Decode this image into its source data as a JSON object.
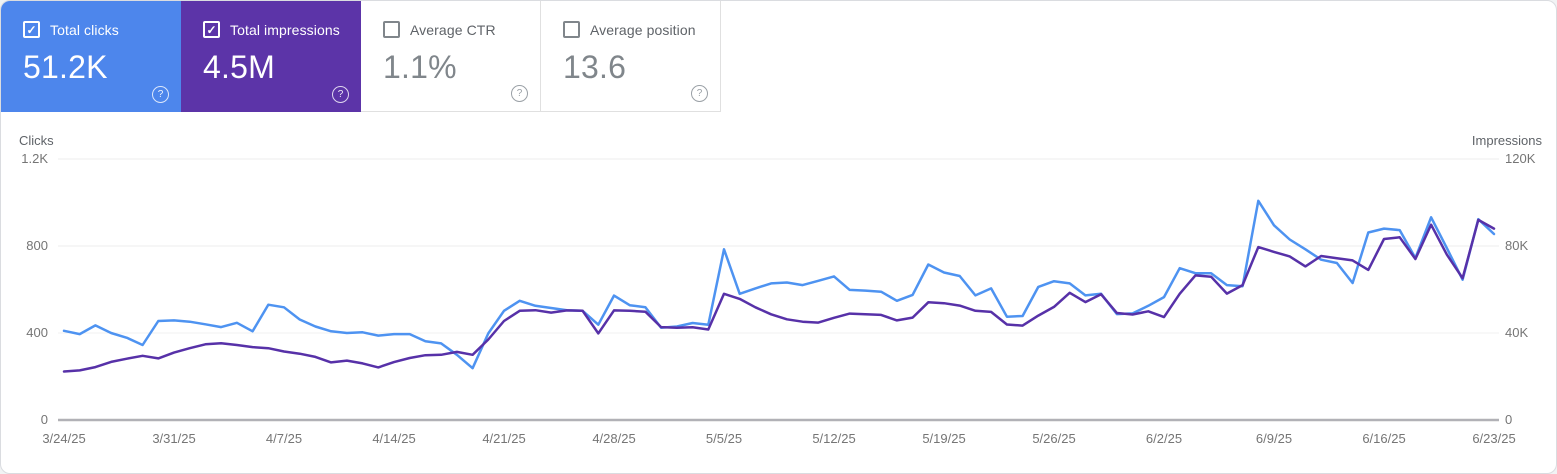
{
  "cards": [
    {
      "label": "Total clicks",
      "value": "51.2K",
      "checked": true,
      "bg": "#4d86ec",
      "help": "?"
    },
    {
      "label": "Total impressions",
      "value": "4.5M",
      "checked": true,
      "bg": "#5c34a8",
      "help": "?"
    },
    {
      "label": "Average CTR",
      "value": "1.1%",
      "checked": false,
      "bg": "#ffffff",
      "help": "?"
    },
    {
      "label": "Average position",
      "value": "13.6",
      "checked": false,
      "bg": "#ffffff",
      "help": "?"
    }
  ],
  "chart_data": {
    "type": "line",
    "grid": true,
    "legend": "none",
    "x": [
      "3/24/25",
      "3/25/25",
      "3/26/25",
      "3/27/25",
      "3/28/25",
      "3/29/25",
      "3/30/25",
      "3/31/25",
      "4/1/25",
      "4/2/25",
      "4/3/25",
      "4/4/25",
      "4/5/25",
      "4/6/25",
      "4/7/25",
      "4/8/25",
      "4/9/25",
      "4/10/25",
      "4/11/25",
      "4/12/25",
      "4/13/25",
      "4/14/25",
      "4/15/25",
      "4/16/25",
      "4/17/25",
      "4/18/25",
      "4/19/25",
      "4/20/25",
      "4/21/25",
      "4/22/25",
      "4/23/25",
      "4/24/25",
      "4/25/25",
      "4/26/25",
      "4/27/25",
      "4/28/25",
      "4/29/25",
      "4/30/25",
      "5/1/25",
      "5/2/25",
      "5/3/25",
      "5/4/25",
      "5/5/25",
      "5/6/25",
      "5/7/25",
      "5/8/25",
      "5/9/25",
      "5/10/25",
      "5/11/25",
      "5/12/25",
      "5/13/25",
      "5/14/25",
      "5/15/25",
      "5/16/25",
      "5/17/25",
      "5/18/25",
      "5/19/25",
      "5/20/25",
      "5/21/25",
      "5/22/25",
      "5/23/25",
      "5/24/25",
      "5/25/25",
      "5/26/25",
      "5/27/25",
      "5/28/25",
      "5/29/25",
      "5/30/25",
      "5/31/25",
      "6/1/25",
      "6/2/25",
      "6/3/25",
      "6/4/25",
      "6/5/25",
      "6/6/25",
      "6/7/25",
      "6/8/25",
      "6/9/25",
      "6/10/25",
      "6/11/25",
      "6/12/25",
      "6/13/25",
      "6/14/25",
      "6/15/25",
      "6/16/25",
      "6/17/25",
      "6/18/25",
      "6/19/25",
      "6/20/25",
      "6/21/25",
      "6/22/25",
      "6/23/25"
    ],
    "x_tick_labels": [
      "3/24/25",
      "3/31/25",
      "4/7/25",
      "4/14/25",
      "4/21/25",
      "4/28/25",
      "5/5/25",
      "5/12/25",
      "5/19/25",
      "5/26/25",
      "6/2/25",
      "6/9/25",
      "6/16/25",
      "6/23/25"
    ],
    "x_tick_interval": 7,
    "series": [
      {
        "name": "Clicks",
        "axis": "left",
        "color": "#4e93f1",
        "values": [
          410,
          395,
          435,
          400,
          378,
          345,
          455,
          458,
          452,
          440,
          427,
          447,
          408,
          530,
          518,
          462,
          430,
          408,
          400,
          403,
          388,
          395,
          395,
          362,
          352,
          300,
          238,
          398,
          502,
          548,
          525,
          515,
          505,
          502,
          438,
          572,
          528,
          518,
          424,
          430,
          446,
          438,
          785,
          580,
          605,
          628,
          632,
          620,
          640,
          660,
          598,
          595,
          590,
          548,
          575,
          715,
          678,
          662,
          573,
          605,
          475,
          478,
          612,
          638,
          628,
          573,
          580,
          487,
          490,
          525,
          565,
          698,
          675,
          675,
          620,
          615,
          1008,
          895,
          830,
          785,
          737,
          722,
          630,
          862,
          880,
          873,
          745,
          932,
          790,
          645,
          923,
          855
        ]
      },
      {
        "name": "Impressions",
        "axis": "right",
        "color": "#5731a8",
        "values": [
          22300,
          22800,
          24300,
          26700,
          28200,
          29500,
          28300,
          31000,
          33000,
          34800,
          35300,
          34500,
          33500,
          33000,
          31500,
          30500,
          29000,
          26500,
          27300,
          26000,
          24200,
          26600,
          28500,
          29800,
          30000,
          31300,
          30000,
          37000,
          45500,
          50200,
          50500,
          49400,
          50400,
          50200,
          39800,
          50400,
          50200,
          49800,
          42700,
          42400,
          42600,
          41600,
          58000,
          55700,
          51800,
          48600,
          46300,
          45200,
          44800,
          47000,
          48900,
          48600,
          48300,
          45800,
          47100,
          54100,
          53700,
          52600,
          50200,
          49700,
          43900,
          43400,
          48000,
          52000,
          58500,
          54200,
          57800,
          49200,
          48500,
          50000,
          47300,
          58000,
          66500,
          65900,
          58100,
          62000,
          79500,
          77300,
          75200,
          70600,
          75400,
          74400,
          73400,
          69000,
          83200,
          84000,
          74000,
          89800,
          76000,
          65200,
          92000,
          88000
        ]
      }
    ],
    "left_axis": {
      "title": "Clicks",
      "ticks": [
        "1.2K",
        "800",
        "400",
        "0"
      ],
      "range": [
        0,
        1200
      ]
    },
    "right_axis": {
      "title": "Impressions",
      "ticks": [
        "120K",
        "80K",
        "40K",
        "0"
      ],
      "range": [
        0,
        120000
      ]
    }
  }
}
